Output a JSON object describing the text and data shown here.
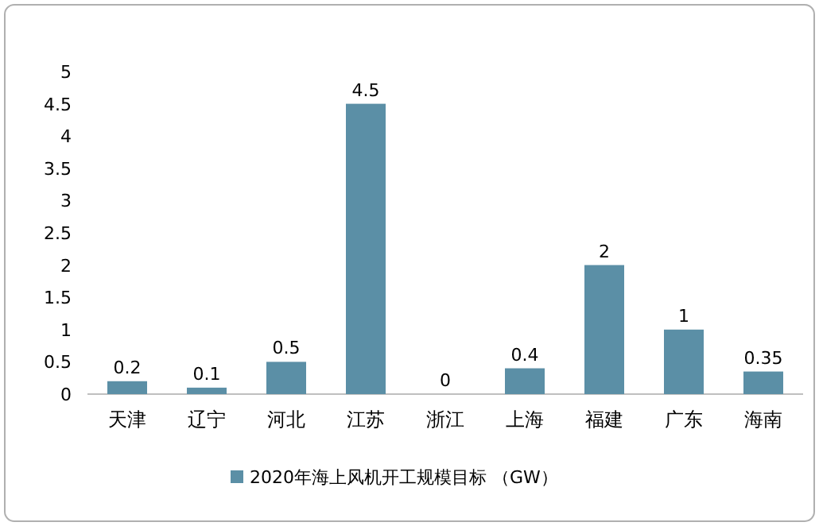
{
  "chart_data": {
    "type": "bar",
    "categories": [
      "天津",
      "辽宁",
      "河北",
      "江苏",
      "浙江",
      "上海",
      "福建",
      "广东",
      "海南"
    ],
    "series": [
      {
        "name": "2020年海上风机开工规模目标 （GW）",
        "color": "#5b8fa6",
        "values": [
          0.2,
          0.1,
          0.5,
          4.5,
          0,
          0.4,
          2,
          1,
          0.35
        ]
      }
    ],
    "ylim": [
      0,
      5
    ],
    "yticks": [
      0,
      0.5,
      1,
      1.5,
      2,
      2.5,
      3,
      3.5,
      4,
      4.5,
      5
    ],
    "data_labels": true,
    "legend": "bottom",
    "grid": false
  }
}
